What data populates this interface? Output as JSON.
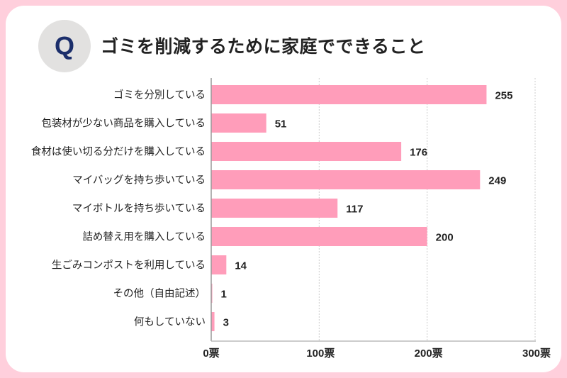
{
  "header": {
    "badge": "Q",
    "title": "ゴミを削減するために家庭でできること"
  },
  "chart_data": {
    "type": "bar",
    "orientation": "horizontal",
    "title": "ゴミを削減するために家庭でできること",
    "categories": [
      "ゴミを分別している",
      "包装材が少ない商品を購入している",
      "食材は使い切る分だけを購入している",
      "マイバッグを持ち歩いている",
      "マイボトルを持ち歩いている",
      "詰め替え用を購入している",
      "生ごみコンポストを利用している",
      "その他（自由記述）",
      "何もしていない"
    ],
    "values": [
      255,
      51,
      176,
      249,
      117,
      200,
      14,
      1,
      3
    ],
    "xlim": [
      0,
      300
    ],
    "xticks": [
      0,
      100,
      200,
      300
    ],
    "xtick_labels": [
      "0票",
      "100票",
      "200票",
      "300票"
    ],
    "xlabel": "",
    "ylabel": "",
    "grid": true,
    "bar_color": "#ff9dba"
  }
}
